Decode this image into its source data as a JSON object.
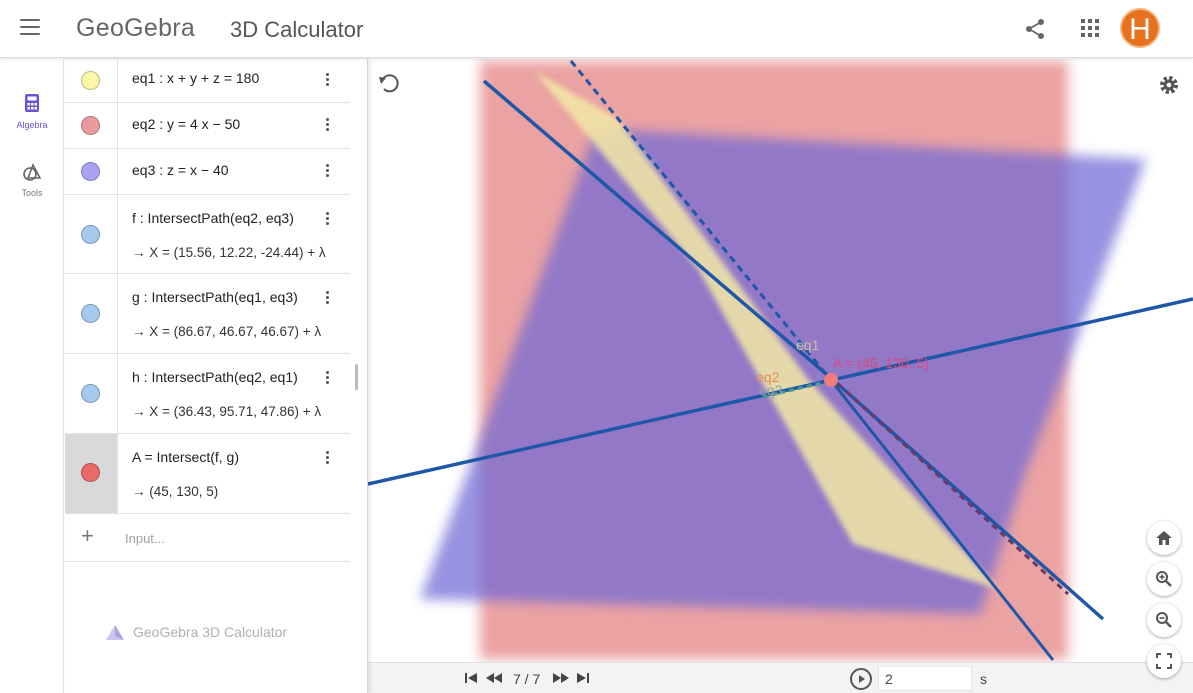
{
  "header": {
    "logo": "GeoGebra",
    "app_title": "3D Calculator",
    "avatar_initial": "H"
  },
  "rail": [
    {
      "label": "Algebra",
      "icon": "calculator-icon",
      "active": true
    },
    {
      "label": "Tools",
      "icon": "tools-icon",
      "active": false
    }
  ],
  "algebra": {
    "rows": [
      {
        "definition": "eq1 : x + y + z  =  180",
        "output": "",
        "color": "#fbf7a8"
      },
      {
        "definition": "eq2 : y  =  4 x − 50",
        "output": "",
        "color": "#ea9a9a"
      },
      {
        "definition": "eq3 : z  =  x − 40",
        "output": "",
        "color": "#a9a4f2"
      },
      {
        "definition": "f : IntersectPath(eq2, eq3)",
        "output": "→  X = (15.56, 12.22, -24.44) + λ",
        "color": "#a6c8ec"
      },
      {
        "definition": "g : IntersectPath(eq1, eq3)",
        "output": "→  X = (86.67, 46.67, 46.67) + λ",
        "color": "#a6c8ec"
      },
      {
        "definition": "h : IntersectPath(eq2, eq1)",
        "output": "→  X = (36.43, 95.71, 47.86) + λ",
        "color": "#a6c8ec"
      },
      {
        "definition": "A  =  Intersect(f, g)",
        "output": "→  (45, 130, 5)",
        "color": "#ea6a6a"
      }
    ],
    "input_placeholder": "Input...",
    "watermark": "GeoGebra 3D Calculator"
  },
  "graphics": {
    "labels": {
      "eq1": "eq1",
      "eq2": "eq2",
      "eq3": "eq3",
      "point": "A = (45, 130, 5)"
    }
  },
  "animation": {
    "step": "7 / 7",
    "speed": "2",
    "unit": "s"
  }
}
